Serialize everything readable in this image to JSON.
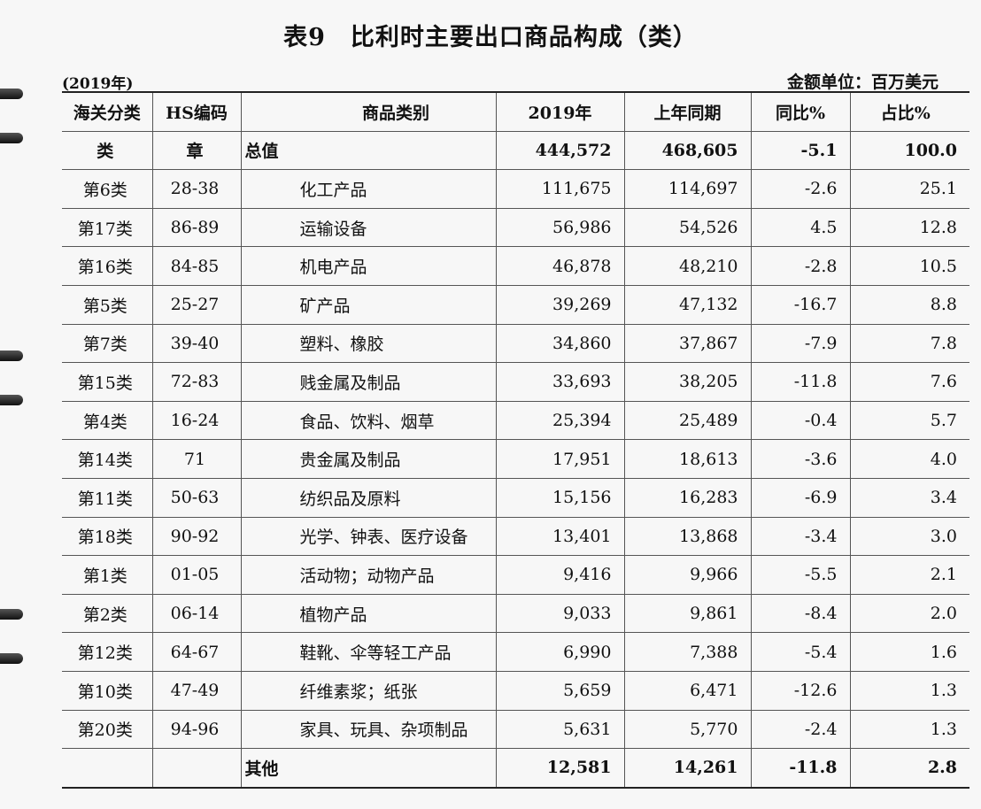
{
  "title": "表9　比利时主要出口商品构成（类）",
  "note_left": "(2019年)",
  "note_right": "金额单位：百万美元",
  "table": {
    "header": [
      "海关分类",
      "HS编码",
      "商品类别",
      "2019年",
      "上年同期",
      "同比%",
      "占比%"
    ],
    "rows": [
      [
        "类",
        "章",
        "总值",
        "444,572",
        "468,605",
        "-5.1",
        "100.0"
      ],
      [
        "第6类",
        "28-38",
        "化工产品",
        "111,675",
        "114,697",
        "-2.6",
        "25.1"
      ],
      [
        "第17类",
        "86-89",
        "运输设备",
        "56,986",
        "54,526",
        "4.5",
        "12.8"
      ],
      [
        "第16类",
        "84-85",
        "机电产品",
        "46,878",
        "48,210",
        "-2.8",
        "10.5"
      ],
      [
        "第5类",
        "25-27",
        "矿产品",
        "39,269",
        "47,132",
        "-16.7",
        "8.8"
      ],
      [
        "第7类",
        "39-40",
        "塑料、橡胶",
        "34,860",
        "37,867",
        "-7.9",
        "7.8"
      ],
      [
        "第15类",
        "72-83",
        "贱金属及制品",
        "33,693",
        "38,205",
        "-11.8",
        "7.6"
      ],
      [
        "第4类",
        "16-24",
        "食品、饮料、烟草",
        "25,394",
        "25,489",
        "-0.4",
        "5.7"
      ],
      [
        "第14类",
        "71",
        "贵金属及制品",
        "17,951",
        "18,613",
        "-3.6",
        "4.0"
      ],
      [
        "第11类",
        "50-63",
        "纺织品及原料",
        "15,156",
        "16,283",
        "-6.9",
        "3.4"
      ],
      [
        "第18类",
        "90-92",
        "光学、钟表、医疗设备",
        "13,401",
        "13,868",
        "-3.4",
        "3.0"
      ],
      [
        "第1类",
        "01-05",
        "活动物；动物产品",
        "9,416",
        "9,966",
        "-5.5",
        "2.1"
      ],
      [
        "第2类",
        "06-14",
        "植物产品",
        "9,033",
        "9,861",
        "-8.4",
        "2.0"
      ],
      [
        "第12类",
        "64-67",
        "鞋靴、伞等轻工产品",
        "6,990",
        "7,388",
        "-5.4",
        "1.6"
      ],
      [
        "第10类",
        "47-49",
        "纤维素浆；纸张",
        "5,659",
        "6,471",
        "-12.6",
        "1.3"
      ],
      [
        "第20类",
        "94-96",
        "家具、玩具、杂项制品",
        "5,631",
        "5,770",
        "-2.4",
        "1.3"
      ],
      [
        null,
        null,
        "其他",
        "12,581",
        "14,261",
        "-11.8",
        "2.8"
      ]
    ]
  }
}
